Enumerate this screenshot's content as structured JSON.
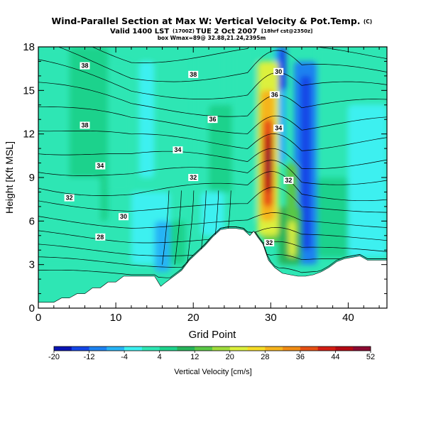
{
  "chart_data": {
    "type": "heatmap",
    "title": "Wind-Parallel Section at Max W: Vertical Velocity & Pot.Temp.",
    "title_units": "(C)",
    "subtitle_line1_left": "Valid 1400 LST",
    "subtitle_line1_mid": "(1700Z)",
    "subtitle_line1_right": "TUE 2 Oct 2007",
    "subtitle_line1_tail": "[18hrf cst@2350z]",
    "subtitle_line2": "box Wmax=89@ 32.88,21.24,2395m",
    "xlabel": "Grid Point",
    "ylabel": "Height [Kft MSL]",
    "xlim": [
      0,
      45
    ],
    "ylim": [
      0,
      18
    ],
    "xticks": [
      0,
      10,
      20,
      30,
      40
    ],
    "yticks": [
      0,
      3,
      6,
      9,
      12,
      15,
      18
    ],
    "colorbar": {
      "label": "Vertical Velocity [cm/s]",
      "tick_labels": [
        "-20",
        "-12",
        "-4",
        "4",
        "12",
        "20",
        "28",
        "36",
        "44",
        "52"
      ],
      "levels": [
        -20,
        -16,
        -12,
        -8,
        -4,
        0,
        4,
        8,
        12,
        16,
        20,
        24,
        28,
        32,
        36,
        40,
        44,
        48,
        52
      ],
      "colors": [
        "#0a14b4",
        "#1446e6",
        "#1e82f0",
        "#28b4f5",
        "#3cf0f0",
        "#2ee6b4",
        "#1ed28c",
        "#28b45a",
        "#5ac846",
        "#a0dc3c",
        "#dcf03c",
        "#f5dc28",
        "#f5b41e",
        "#f08c14",
        "#e65014",
        "#d21e14",
        "#b40a14",
        "#8c0a32"
      ]
    },
    "contour_variable": "Potential temperature (C)",
    "contour_labels": [
      {
        "text": "38",
        "x": 6.0,
        "y": 16.7
      },
      {
        "text": "38",
        "x": 20.0,
        "y": 16.1
      },
      {
        "text": "38",
        "x": 6.0,
        "y": 12.6
      },
      {
        "text": "36",
        "x": 22.5,
        "y": 13.0
      },
      {
        "text": "34",
        "x": 18.0,
        "y": 10.9
      },
      {
        "text": "34",
        "x": 8.0,
        "y": 9.8
      },
      {
        "text": "32",
        "x": 20.0,
        "y": 9.0
      },
      {
        "text": "32",
        "x": 4.0,
        "y": 7.6
      },
      {
        "text": "30",
        "x": 11.0,
        "y": 6.3
      },
      {
        "text": "28",
        "x": 8.0,
        "y": 4.9
      },
      {
        "text": "30",
        "x": 31.0,
        "y": 16.3
      },
      {
        "text": "36",
        "x": 30.5,
        "y": 14.7
      },
      {
        "text": "34",
        "x": 31.0,
        "y": 12.4
      },
      {
        "text": "32",
        "x": 32.3,
        "y": 8.8
      },
      {
        "text": "32",
        "x": 29.8,
        "y": 4.5
      }
    ],
    "terrain_kft": [
      [
        0,
        0.4
      ],
      [
        1,
        0.4
      ],
      [
        2,
        0.4
      ],
      [
        3,
        0.7
      ],
      [
        4,
        0.7
      ],
      [
        5,
        1.0
      ],
      [
        6,
        1.0
      ],
      [
        7,
        1.4
      ],
      [
        8,
        1.4
      ],
      [
        9,
        1.8
      ],
      [
        10,
        1.8
      ],
      [
        11,
        2.2
      ],
      [
        12,
        2.2
      ],
      [
        13,
        2.2
      ],
      [
        14,
        2.2
      ],
      [
        15,
        2.2
      ],
      [
        15.8,
        1.5
      ],
      [
        16.5,
        1.8
      ],
      [
        17.5,
        2.2
      ],
      [
        18.5,
        2.6
      ],
      [
        19.5,
        3.3
      ],
      [
        20.5,
        3.8
      ],
      [
        21.5,
        4.3
      ],
      [
        22.5,
        4.9
      ],
      [
        23.5,
        5.4
      ],
      [
        24.5,
        5.5
      ],
      [
        25.5,
        5.5
      ],
      [
        26.5,
        5.4
      ],
      [
        27.3,
        5.0
      ],
      [
        27.8,
        5.3
      ],
      [
        28.3,
        4.9
      ],
      [
        29,
        4.4
      ],
      [
        29.7,
        3.3
      ],
      [
        30.5,
        2.8
      ],
      [
        31.5,
        2.4
      ],
      [
        32.5,
        2.3
      ],
      [
        33.5,
        2.2
      ],
      [
        34.5,
        2.2
      ],
      [
        35.5,
        2.3
      ],
      [
        36.5,
        2.5
      ],
      [
        37.5,
        2.8
      ],
      [
        38.5,
        3.2
      ],
      [
        39.5,
        3.4
      ],
      [
        40.5,
        3.5
      ],
      [
        41.5,
        3.6
      ],
      [
        42.5,
        3.3
      ],
      [
        43.5,
        3.3
      ],
      [
        45,
        3.3
      ]
    ]
  }
}
